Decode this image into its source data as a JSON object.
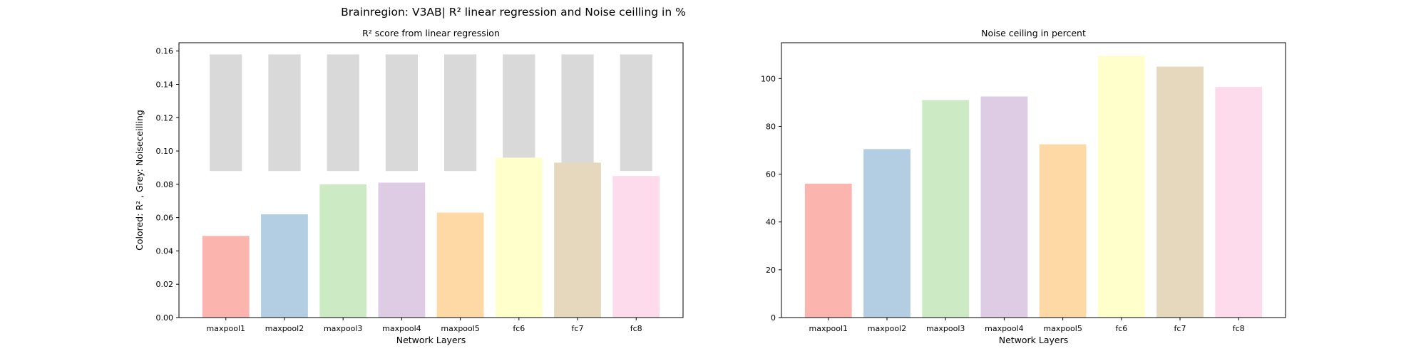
{
  "figure_title": "Brainregion: V3AB| R² linear regression and Noise ceilling in %",
  "chart_data": [
    {
      "type": "bar",
      "title": "R² score from linear regression",
      "xlabel": "Network Layers",
      "ylabel": "Colored: R² , Grey: Noiseceilling",
      "categories": [
        "maxpool1",
        "maxpool2",
        "maxpool3",
        "maxpool4",
        "maxpool5",
        "fc6",
        "fc7",
        "fc8"
      ],
      "ylim": [
        0,
        0.165
      ],
      "yticks": [
        0.0,
        0.02,
        0.04,
        0.06,
        0.08,
        0.1,
        0.12,
        0.14,
        0.16
      ],
      "ytick_labels": [
        "0.00",
        "0.02",
        "0.04",
        "0.06",
        "0.08",
        "0.10",
        "0.12",
        "0.14",
        "0.16"
      ],
      "noise_ceiling_range": [
        0.088,
        0.158
      ],
      "values": [
        0.049,
        0.062,
        0.08,
        0.081,
        0.063,
        0.096,
        0.093,
        0.085
      ],
      "colors": [
        "#fbb4ae",
        "#b3cde3",
        "#ccebc5",
        "#decbe4",
        "#fed9a6",
        "#ffffcc",
        "#e5d8bd",
        "#fddaec"
      ],
      "noise_color": "#d9d9d9",
      "grid": false,
      "legend": "none"
    },
    {
      "type": "bar",
      "title": "Noise ceiling in percent",
      "xlabel": "Network Layers",
      "ylabel": "",
      "categories": [
        "maxpool1",
        "maxpool2",
        "maxpool3",
        "maxpool4",
        "maxpool5",
        "fc6",
        "fc7",
        "fc8"
      ],
      "ylim": [
        0,
        115
      ],
      "yticks": [
        0,
        20,
        40,
        60,
        80,
        100
      ],
      "ytick_labels": [
        "0",
        "20",
        "40",
        "60",
        "80",
        "100"
      ],
      "values": [
        56,
        70.5,
        91,
        92.5,
        72.5,
        109.5,
        105,
        96.5
      ],
      "colors": [
        "#fbb4ae",
        "#b3cde3",
        "#ccebc5",
        "#decbe4",
        "#fed9a6",
        "#ffffcc",
        "#e5d8bd",
        "#fddaec"
      ],
      "grid": false,
      "legend": "none"
    }
  ]
}
